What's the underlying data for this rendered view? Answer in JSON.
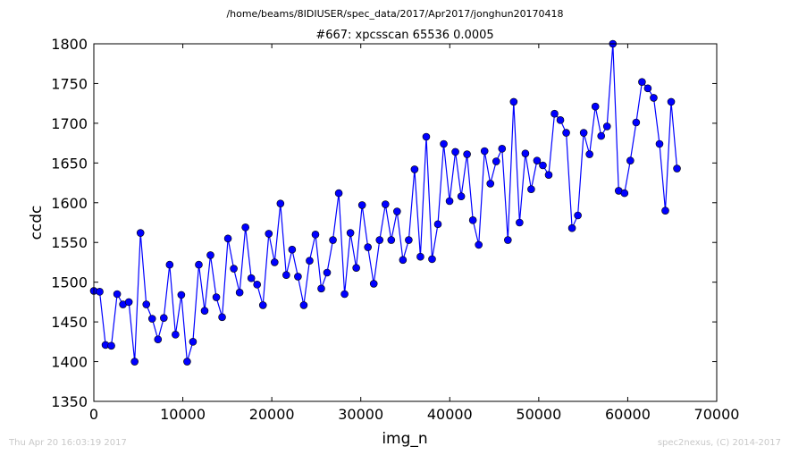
{
  "figure": {
    "suptitle": "/home/beams/8IDIUSER/spec_data/2017/Apr2017/jonghun20170418",
    "footer_left": "Thu Apr 20 16:03:19 2017",
    "footer_right": "spec2nexus, (C) 2014-2017"
  },
  "chart_data": {
    "type": "line",
    "title": "#667: xpcsscan 65536 0.0005",
    "xlabel": "img_n",
    "ylabel": "ccdc",
    "xlim": [
      0,
      70000
    ],
    "ylim": [
      1350,
      1800
    ],
    "xticks": [
      0,
      10000,
      20000,
      30000,
      40000,
      50000,
      60000,
      70000
    ],
    "yticks": [
      1350,
      1400,
      1450,
      1500,
      1550,
      1600,
      1650,
      1700,
      1750,
      1800
    ],
    "grid": false,
    "legend": "none",
    "series": [
      {
        "color": "#0000ff",
        "marker": "circle",
        "x": [
          0,
          655,
          1311,
          1966,
          2621,
          3277,
          3932,
          4588,
          5243,
          5898,
          6554,
          7209,
          7864,
          8520,
          9175,
          9830,
          10486,
          11141,
          11796,
          12452,
          13107,
          13763,
          14418,
          15073,
          15729,
          16384,
          17039,
          17695,
          18350,
          19005,
          19661,
          20316,
          20972,
          21627,
          22282,
          22938,
          23593,
          24248,
          24904,
          25559,
          26214,
          26870,
          27525,
          28180,
          28836,
          29491,
          30147,
          30802,
          31457,
          32113,
          32768,
          33423,
          34079,
          34734,
          35389,
          36045,
          36700,
          37356,
          38011,
          38666,
          39322,
          39977,
          40632,
          41288,
          41943,
          42598,
          43254,
          43909,
          44564,
          45220,
          45875,
          46531,
          47186,
          47841,
          48497,
          49152,
          49807,
          50463,
          51118,
          51773,
          52429,
          53084,
          53740,
          54395,
          55050,
          55706,
          56361,
          57016,
          57672,
          58327,
          58982,
          59638,
          60293,
          60948,
          61604,
          62259,
          62915,
          63570,
          64225,
          64881,
          65536
        ],
        "y": [
          1489,
          1488,
          1421,
          1420,
          1485,
          1472,
          1475,
          1400,
          1562,
          1472,
          1454,
          1428,
          1455,
          1522,
          1434,
          1484,
          1400,
          1425,
          1522,
          1464,
          1534,
          1481,
          1456,
          1555,
          1517,
          1487,
          1569,
          1505,
          1497,
          1471,
          1561,
          1525,
          1599,
          1509,
          1541,
          1507,
          1471,
          1527,
          1560,
          1492,
          1512,
          1553,
          1612,
          1485,
          1562,
          1518,
          1597,
          1544,
          1498,
          1553,
          1598,
          1553,
          1589,
          1528,
          1553,
          1642,
          1532,
          1683,
          1529,
          1573,
          1674,
          1602,
          1664,
          1608,
          1661,
          1578,
          1547,
          1665,
          1624,
          1652,
          1668,
          1553,
          1727,
          1575,
          1662,
          1617,
          1653,
          1647,
          1635,
          1712,
          1704,
          1688,
          1568,
          1584,
          1688,
          1661,
          1721,
          1684,
          1696,
          1800,
          1615,
          1612,
          1653,
          1701,
          1752,
          1744,
          1732,
          1674,
          1590,
          1727,
          1643
        ]
      }
    ]
  }
}
